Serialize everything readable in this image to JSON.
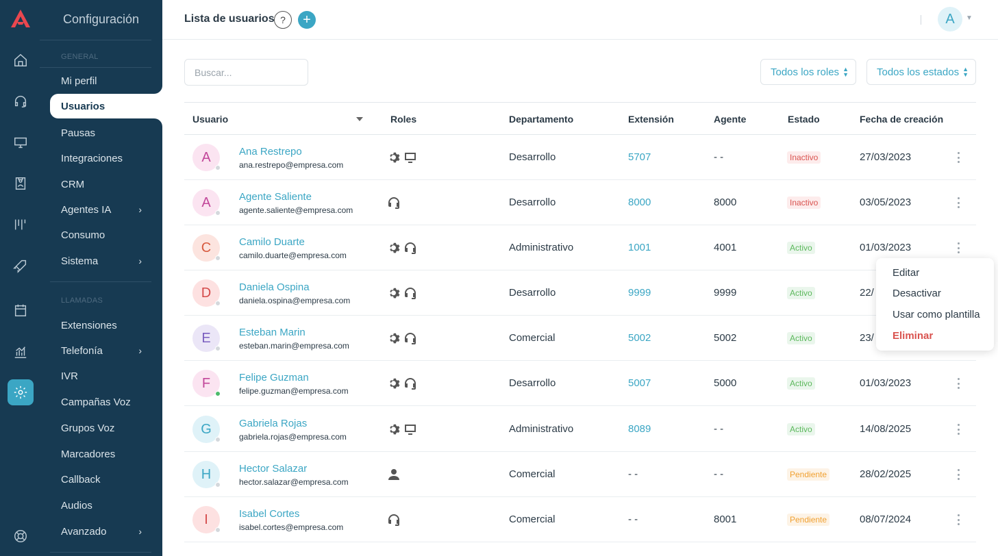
{
  "sidebar": {
    "title": "Configuración",
    "section_general": "GENERAL",
    "section_llamadas": "LLAMADAS",
    "items_general": [
      {
        "label": "Mi perfil"
      },
      {
        "label": "Usuarios"
      },
      {
        "label": "Pausas"
      },
      {
        "label": "Integraciones"
      },
      {
        "label": "CRM"
      },
      {
        "label": "Agentes IA"
      },
      {
        "label": "Consumo"
      },
      {
        "label": "Sistema"
      }
    ],
    "items_llamadas": [
      {
        "label": "Extensiones"
      },
      {
        "label": "Telefonía"
      },
      {
        "label": "IVR"
      },
      {
        "label": "Campañas Voz"
      },
      {
        "label": "Grupos Voz"
      },
      {
        "label": "Marcadores"
      },
      {
        "label": "Callback"
      },
      {
        "label": "Audios"
      },
      {
        "label": "Avanzado"
      }
    ],
    "chevron": "›"
  },
  "rail_icons": [
    "home-icon",
    "headset-icon",
    "monitor-icon",
    "contacts-icon",
    "kanban-icon",
    "rocket-icon",
    "calendar-icon",
    "chart-icon",
    "settings-icon",
    "lifebuoy-icon"
  ],
  "header": {
    "title": "Lista de usuarios",
    "help": "?",
    "add": "+",
    "avatar": "A"
  },
  "toolbar": {
    "search_placeholder": "Buscar...",
    "roles_filter": "Todos los roles",
    "status_filter": "Todos los estados"
  },
  "table": {
    "headers": [
      "Usuario",
      "Roles",
      "Departamento",
      "Extensión",
      "Agente",
      "Estado",
      "Fecha de creación"
    ],
    "rows": [
      {
        "initial": "A",
        "name": "Ana Restrepo",
        "email": "ana.restrepo@empresa.com",
        "roles": [
          "gear",
          "monitor"
        ],
        "dept": "Desarrollo",
        "ext": "5707",
        "agent": "- -",
        "status": "Inactivo",
        "date": "27/03/2023"
      },
      {
        "initial": "A",
        "name": "Agente Saliente",
        "email": "agente.saliente@empresa.com",
        "roles": [
          "headset"
        ],
        "dept": "Desarrollo",
        "ext": "8000",
        "agent": "8000",
        "status": "Inactivo",
        "date": "03/05/2023"
      },
      {
        "initial": "C",
        "name": "Camilo Duarte",
        "email": "camilo.duarte@empresa.com",
        "roles": [
          "gear",
          "headset"
        ],
        "dept": "Administrativo",
        "ext": "1001",
        "agent": "4001",
        "status": "Activo",
        "date": "01/03/2023"
      },
      {
        "initial": "D",
        "name": "Daniela Ospina",
        "email": "daniela.ospina@empresa.com",
        "roles": [
          "gear",
          "headset"
        ],
        "dept": "Desarrollo",
        "ext": "9999",
        "agent": "9999",
        "status": "Activo",
        "date": "22/"
      },
      {
        "initial": "E",
        "name": "Esteban Marin",
        "email": "esteban.marin@empresa.com",
        "roles": [
          "gear",
          "headset"
        ],
        "dept": "Comercial",
        "ext": "5002",
        "agent": "5002",
        "status": "Activo",
        "date": "23/"
      },
      {
        "initial": "F",
        "name": "Felipe Guzman",
        "email": "felipe.guzman@empresa.com",
        "roles": [
          "gear",
          "headset"
        ],
        "dept": "Desarrollo",
        "ext": "5007",
        "agent": "5000",
        "status": "Activo",
        "date": "01/03/2023"
      },
      {
        "initial": "G",
        "name": "Gabriela Rojas",
        "email": "gabriela.rojas@empresa.com",
        "roles": [
          "gear",
          "monitor"
        ],
        "dept": "Administrativo",
        "ext": "8089",
        "agent": "- -",
        "status": "Activo",
        "date": "14/08/2025"
      },
      {
        "initial": "H",
        "name": "Hector Salazar",
        "email": "hector.salazar@empresa.com",
        "roles": [
          "user"
        ],
        "dept": "Comercial",
        "ext": "- -",
        "agent": "- -",
        "status": "Pendiente",
        "date": "28/02/2025"
      },
      {
        "initial": "I",
        "name": "Isabel Cortes",
        "email": "isabel.cortes@empresa.com",
        "roles": [
          "headset"
        ],
        "dept": "Comercial",
        "ext": "- -",
        "agent": "8001",
        "status": "Pendiente",
        "date": "08/07/2024"
      }
    ]
  },
  "context_menu": {
    "edit": "Editar",
    "deactivate": "Desactivar",
    "template": "Usar como plantilla",
    "delete": "Eliminar"
  },
  "colors": {
    "sidebar_bg": "#173a52",
    "accent": "#3ba6c4",
    "danger": "#d9534f",
    "success": "#5cb85c",
    "warning": "#f0a030"
  }
}
